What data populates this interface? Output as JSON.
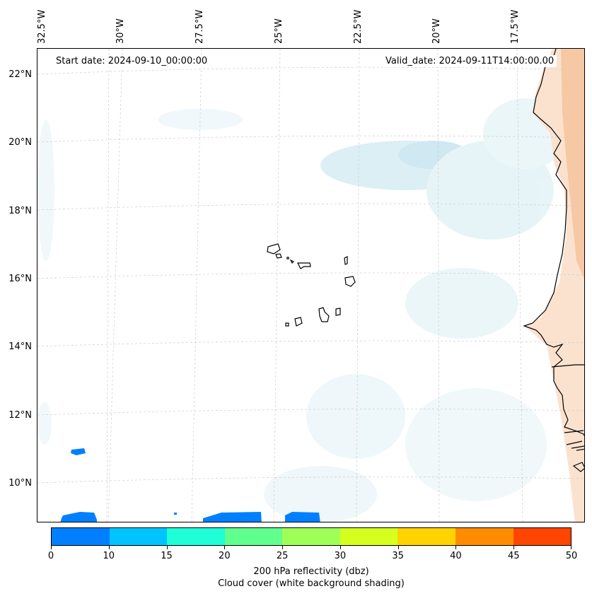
{
  "map": {
    "start_date": "Start date: 2024-09-10_00:00:00",
    "valid_date": "Valid_date: 2024-09-11T14:00:00.00",
    "lon_labels": [
      "32.5°W",
      "30°W",
      "27.5°W",
      "25°W",
      "22.5°W",
      "20°W",
      "17.5°W"
    ],
    "lat_labels": [
      "22°N",
      "20°N",
      "18°N",
      "16°N",
      "14°N",
      "12°N",
      "10°N"
    ]
  },
  "colorbar": {
    "colors": [
      "#0080ff",
      "#00c4ff",
      "#1effd8",
      "#60ff8e",
      "#a0ff56",
      "#d6ff1e",
      "#ffd300",
      "#ff8c00",
      "#ff4500"
    ],
    "tick_labels": [
      "0",
      "10",
      "15",
      "20",
      "25",
      "30",
      "35",
      "40",
      "45",
      "50"
    ],
    "label_line1": "200 hPa reflectivity (dbz)",
    "label_line2": "Cloud cover (white background shading)"
  }
}
